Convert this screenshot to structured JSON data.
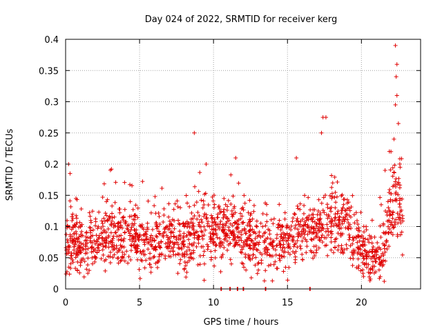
{
  "chart_data": {
    "type": "scatter",
    "title": "Day 024 of 2022, SRMTID for receiver kerg",
    "xlabel": "GPS time / hours",
    "ylabel": "SRMTID / TECUs",
    "xlim": [
      0,
      24
    ],
    "ylim": [
      0,
      0.4
    ],
    "x_ticks": [
      0,
      5,
      10,
      15,
      20
    ],
    "x_tick_labels": [
      "0",
      "5",
      "10",
      "15",
      "20"
    ],
    "y_ticks": [
      0,
      0.05,
      0.1,
      0.15,
      0.2,
      0.25,
      0.3,
      0.35,
      0.4
    ],
    "y_tick_labels": [
      "0",
      "0.05",
      "0.1",
      "0.15",
      "0.2",
      "0.25",
      "0.3",
      "0.35",
      "0.4"
    ],
    "grid": true,
    "marker": "+",
    "color": "#e00000",
    "series_profile": [
      {
        "x": 0.0,
        "y": 0.07
      },
      {
        "x": 0.5,
        "y": 0.075
      },
      {
        "x": 1.0,
        "y": 0.065
      },
      {
        "x": 1.5,
        "y": 0.07
      },
      {
        "x": 2.0,
        "y": 0.08
      },
      {
        "x": 3.0,
        "y": 0.09
      },
      {
        "x": 4.0,
        "y": 0.09
      },
      {
        "x": 5.0,
        "y": 0.075
      },
      {
        "x": 6.0,
        "y": 0.08
      },
      {
        "x": 7.0,
        "y": 0.085
      },
      {
        "x": 8.0,
        "y": 0.075
      },
      {
        "x": 9.0,
        "y": 0.1
      },
      {
        "x": 10.0,
        "y": 0.09
      },
      {
        "x": 11.0,
        "y": 0.095
      },
      {
        "x": 12.0,
        "y": 0.085
      },
      {
        "x": 13.0,
        "y": 0.07
      },
      {
        "x": 14.0,
        "y": 0.075
      },
      {
        "x": 15.0,
        "y": 0.08
      },
      {
        "x": 16.0,
        "y": 0.09
      },
      {
        "x": 17.0,
        "y": 0.1
      },
      {
        "x": 18.0,
        "y": 0.11
      },
      {
        "x": 19.0,
        "y": 0.1
      },
      {
        "x": 20.0,
        "y": 0.07
      },
      {
        "x": 20.5,
        "y": 0.045
      },
      {
        "x": 21.0,
        "y": 0.05
      },
      {
        "x": 21.5,
        "y": 0.06
      },
      {
        "x": 22.0,
        "y": 0.13
      },
      {
        "x": 22.5,
        "y": 0.15
      },
      {
        "x": 22.8,
        "y": 0.11
      }
    ],
    "highlighted_points": [
      {
        "x": 0.2,
        "y": 0.2
      },
      {
        "x": 0.3,
        "y": 0.185
      },
      {
        "x": 0.7,
        "y": 0.145
      },
      {
        "x": 3.1,
        "y": 0.192
      },
      {
        "x": 8.7,
        "y": 0.25
      },
      {
        "x": 9.5,
        "y": 0.2
      },
      {
        "x": 11.5,
        "y": 0.21
      },
      {
        "x": 15.6,
        "y": 0.21
      },
      {
        "x": 17.4,
        "y": 0.275
      },
      {
        "x": 17.6,
        "y": 0.275
      },
      {
        "x": 17.3,
        "y": 0.25
      },
      {
        "x": 22.3,
        "y": 0.39
      },
      {
        "x": 22.4,
        "y": 0.36
      },
      {
        "x": 22.35,
        "y": 0.34
      },
      {
        "x": 22.4,
        "y": 0.31
      },
      {
        "x": 22.3,
        "y": 0.295
      },
      {
        "x": 22.5,
        "y": 0.265
      },
      {
        "x": 22.2,
        "y": 0.24
      },
      {
        "x": 22.0,
        "y": 0.22
      },
      {
        "x": 21.6,
        "y": 0.19
      }
    ],
    "zero_points_x": [
      10.5,
      11.1,
      11.6,
      12.0,
      13.5,
      16.5
    ],
    "n_points": 1700
  }
}
